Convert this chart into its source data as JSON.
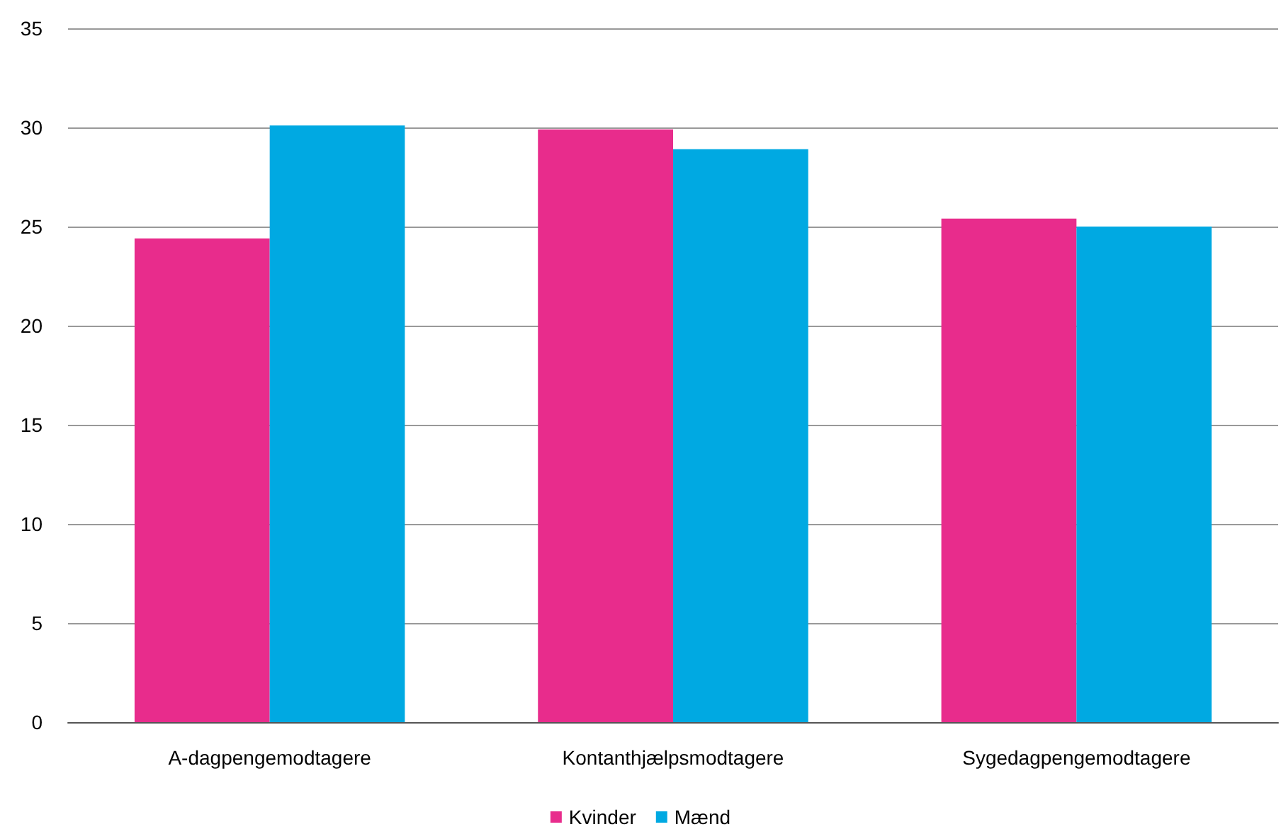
{
  "chart_data": {
    "type": "bar",
    "categories": [
      "A-dagpengemodtagere",
      "Kontanthjælpsmodtagere",
      "Sygedagpengemodtagere"
    ],
    "series": [
      {
        "name": "Kvinder",
        "color": "#e82c8c",
        "values": [
          24.4,
          29.9,
          25.4
        ]
      },
      {
        "name": "Mænd",
        "color": "#00a9e2",
        "values": [
          30.1,
          28.9,
          25.0
        ]
      }
    ],
    "ylim": [
      0,
      35
    ],
    "yticks": [
      0,
      5,
      10,
      15,
      20,
      25,
      30,
      35
    ],
    "grid": "y",
    "legend": "bottom"
  }
}
